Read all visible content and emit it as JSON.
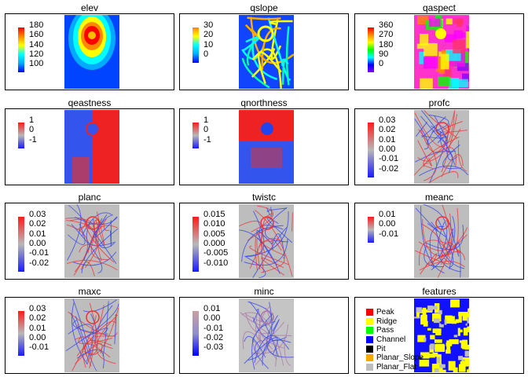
{
  "colors": {
    "elev": [
      "#0000ff",
      "#00aaff",
      "#00ffff",
      "#ffff00",
      "#ff8800",
      "#ff0000"
    ],
    "qslope": [
      "#0000ff",
      "#00aaff",
      "#00ffff",
      "#ffff00",
      "#ff8800"
    ],
    "qaspect": [
      "#8800ff",
      "#0000ff",
      "#00ffff",
      "#00ff00",
      "#ffff00",
      "#ff8800",
      "#ff0000"
    ],
    "diverging": [
      "#1a1aff",
      "#b8b8b8",
      "#ff1a1a"
    ],
    "minc": [
      "#0000ff",
      "#8f8fcc",
      "#c9a0a0"
    ]
  },
  "panels": [
    {
      "id": "elev",
      "title": "elev",
      "type": "continuous",
      "ticks": [
        "180",
        "160",
        "140",
        "120",
        "100"
      ]
    },
    {
      "id": "qslope",
      "title": "qslope",
      "type": "continuous",
      "ticks": [
        "30",
        "20",
        "10",
        "0"
      ]
    },
    {
      "id": "qaspect",
      "title": "qaspect",
      "type": "continuous",
      "ticks": [
        "360",
        "270",
        "180",
        "90",
        "0"
      ]
    },
    {
      "id": "qeastness",
      "title": "qeastness",
      "type": "continuous",
      "ticks": [
        "1",
        "0",
        "-1"
      ]
    },
    {
      "id": "qnorthness",
      "title": "qnorthness",
      "type": "continuous",
      "ticks": [
        "1",
        "0",
        "-1"
      ]
    },
    {
      "id": "profc",
      "title": "profc",
      "type": "continuous",
      "ticks": [
        "0.03",
        "0.02",
        "0.01",
        "0.00",
        "-0.01",
        "-0.02"
      ]
    },
    {
      "id": "planc",
      "title": "planc",
      "type": "continuous",
      "ticks": [
        "0.03",
        "0.02",
        "0.01",
        "0.00",
        "-0.01",
        "-0.02"
      ]
    },
    {
      "id": "twistc",
      "title": "twistc",
      "type": "continuous",
      "ticks": [
        "0.015",
        "0.010",
        "0.005",
        "0.000",
        "-0.005",
        "-0.010"
      ]
    },
    {
      "id": "meanc",
      "title": "meanc",
      "type": "continuous",
      "ticks": [
        "0.01",
        "0.00",
        "-0.01"
      ]
    },
    {
      "id": "maxc",
      "title": "maxc",
      "type": "continuous",
      "ticks": [
        "0.03",
        "0.02",
        "0.01",
        "0.00",
        "-0.01"
      ]
    },
    {
      "id": "minc",
      "title": "minc",
      "type": "continuous",
      "ticks": [
        "0.01",
        "0.00",
        "-0.01",
        "-0.02",
        "-0.03"
      ]
    },
    {
      "id": "features",
      "title": "features",
      "type": "categorical",
      "legend": [
        {
          "label": "Peak",
          "color": "#ff0000"
        },
        {
          "label": "Ridge",
          "color": "#ffff00"
        },
        {
          "label": "Pass",
          "color": "#00ff00"
        },
        {
          "label": "Channel",
          "color": "#0000ff"
        },
        {
          "label": "Pit",
          "color": "#000000"
        },
        {
          "label": "Planar_Slope",
          "color": "#ffa500"
        },
        {
          "label": "Planar_Flat",
          "color": "#bebebe"
        }
      ]
    }
  ],
  "chart_data": [
    {
      "type": "heatmap",
      "title": "elev",
      "legend_ticks": [
        180,
        160,
        140,
        120,
        100
      ]
    },
    {
      "type": "heatmap",
      "title": "qslope",
      "legend_ticks": [
        30,
        20,
        10,
        0
      ]
    },
    {
      "type": "heatmap",
      "title": "qaspect",
      "legend_ticks": [
        360,
        270,
        180,
        90,
        0
      ]
    },
    {
      "type": "heatmap",
      "title": "qeastness",
      "legend_ticks": [
        1,
        0,
        -1
      ]
    },
    {
      "type": "heatmap",
      "title": "qnorthness",
      "legend_ticks": [
        1,
        0,
        -1
      ]
    },
    {
      "type": "heatmap",
      "title": "profc",
      "legend_ticks": [
        0.03,
        0.02,
        0.01,
        0.0,
        -0.01,
        -0.02
      ]
    },
    {
      "type": "heatmap",
      "title": "planc",
      "legend_ticks": [
        0.03,
        0.02,
        0.01,
        0.0,
        -0.01,
        -0.02
      ]
    },
    {
      "type": "heatmap",
      "title": "twistc",
      "legend_ticks": [
        0.015,
        0.01,
        0.005,
        0.0,
        -0.005,
        -0.01
      ]
    },
    {
      "type": "heatmap",
      "title": "meanc",
      "legend_ticks": [
        0.01,
        0.0,
        -0.01
      ]
    },
    {
      "type": "heatmap",
      "title": "maxc",
      "legend_ticks": [
        0.03,
        0.02,
        0.01,
        0.0,
        -0.01
      ]
    },
    {
      "type": "heatmap",
      "title": "minc",
      "legend_ticks": [
        0.01,
        0.0,
        -0.01,
        -0.02,
        -0.03
      ]
    },
    {
      "type": "heatmap",
      "title": "features",
      "categories": [
        "Peak",
        "Ridge",
        "Pass",
        "Channel",
        "Pit",
        "Planar_Slope",
        "Planar_Flat"
      ]
    }
  ]
}
